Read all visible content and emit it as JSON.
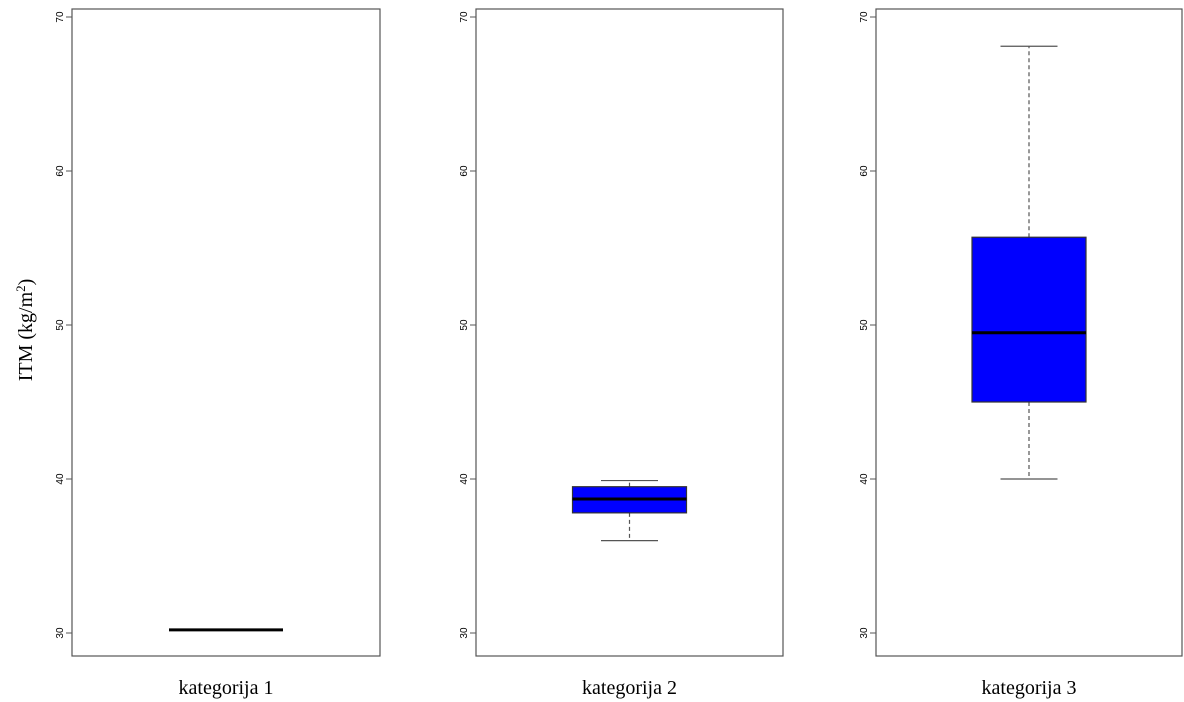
{
  "chart_data": {
    "type": "boxplot",
    "ylabel": "ITM (kg/m",
    "ylabel_sup": "2",
    "ylabel_close": ")",
    "ylim": [
      30,
      70
    ],
    "yticks": [
      30,
      40,
      50,
      60,
      70
    ],
    "box_color": "#0000ff",
    "grid": false,
    "panels": [
      {
        "name": "kategorija 1",
        "whisker_low": 30.2,
        "q1": 30.2,
        "median": 30.2,
        "q3": 30.2,
        "whisker_high": 30.2
      },
      {
        "name": "kategorija 2",
        "whisker_low": 36.0,
        "q1": 37.8,
        "median": 38.7,
        "q3": 39.5,
        "whisker_high": 39.9
      },
      {
        "name": "kategorija 3",
        "whisker_low": 40.0,
        "q1": 45.0,
        "median": 49.5,
        "q3": 55.7,
        "whisker_high": 68.1
      }
    ]
  }
}
